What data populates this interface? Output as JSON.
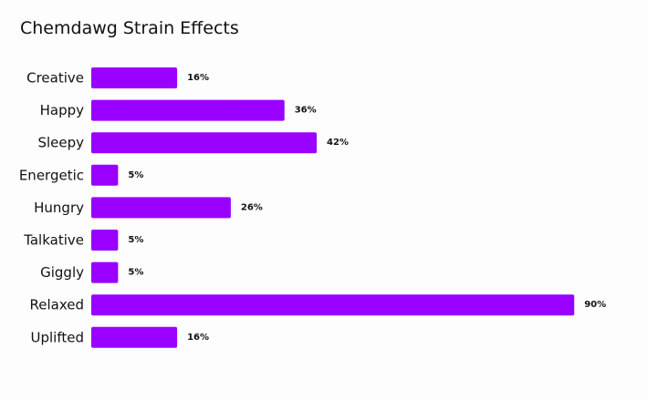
{
  "chart_data": {
    "type": "bar",
    "orientation": "horizontal",
    "title": "Chemdawg Strain Effects",
    "categories": [
      "Creative",
      "Happy",
      "Sleepy",
      "Energetic",
      "Hungry",
      "Talkative",
      "Giggly",
      "Relaxed",
      "Uplifted"
    ],
    "values": [
      16,
      36,
      42,
      5,
      26,
      5,
      5,
      90,
      16
    ],
    "value_labels": [
      "16%",
      "36%",
      "42%",
      "5%",
      "26%",
      "5%",
      "5%",
      "90%",
      "16%"
    ],
    "unit": "%",
    "xlim": [
      0,
      100
    ],
    "grid": false,
    "legend": "none",
    "bar_color": "#9a00ff",
    "background_color": "#fcfdfc"
  }
}
